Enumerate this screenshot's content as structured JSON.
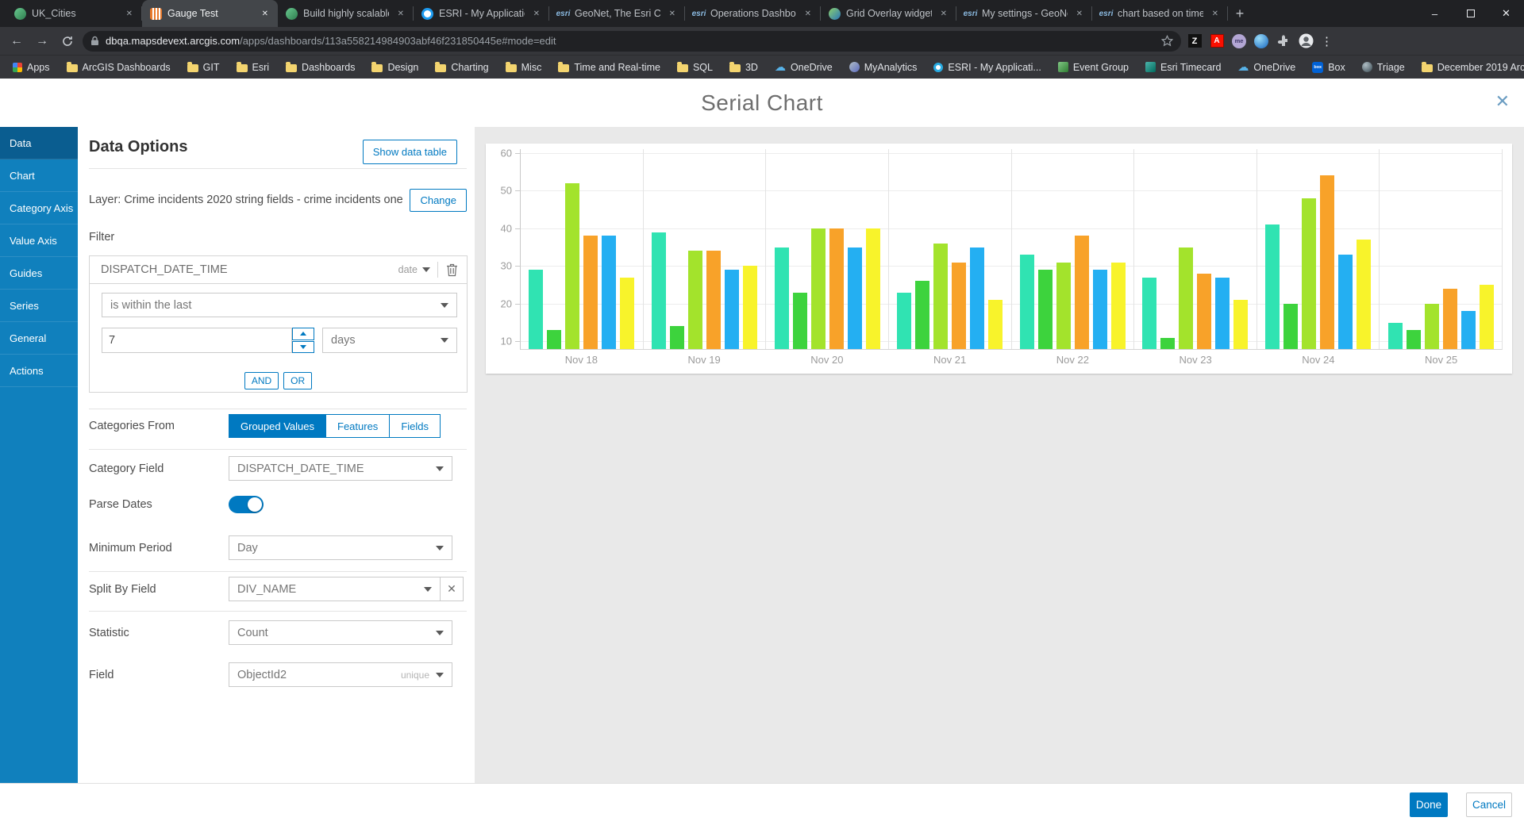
{
  "browser": {
    "tabs": [
      {
        "title": "UK_Cities",
        "icon": "globe",
        "active": false
      },
      {
        "title": "Gauge Test",
        "icon": "dashboard",
        "active": true
      },
      {
        "title": "Build highly scalable da",
        "icon": "globe",
        "active": false
      },
      {
        "title": "ESRI - My Applications",
        "icon": "ring",
        "active": false
      },
      {
        "title": "GeoNet, The Esri Comm",
        "icon": "esri",
        "active": false
      },
      {
        "title": "Operations Dashboard",
        "icon": "esri",
        "active": false
      },
      {
        "title": "Grid Overlay widget—A",
        "icon": "globe2",
        "active": false
      },
      {
        "title": "My settings - GeoNet, T",
        "icon": "esri",
        "active": false
      },
      {
        "title": "chart based on time/da",
        "icon": "esri",
        "active": false
      }
    ],
    "url": {
      "domain": "dbqa.mapsdevext.arcgis.com",
      "path": "/apps/dashboards/113a558214984903abf46f231850445e#mode=edit"
    },
    "extensions": {
      "z_label": "Z",
      "adobe_label": "A",
      "me_label": "me"
    },
    "bookmarks": [
      {
        "label": "Apps",
        "icon": "apps"
      },
      {
        "label": "ArcGIS Dashboards",
        "icon": "folder"
      },
      {
        "label": "GIT",
        "icon": "folder"
      },
      {
        "label": "Esri",
        "icon": "folder"
      },
      {
        "label": "Dashboards",
        "icon": "folder"
      },
      {
        "label": "Design",
        "icon": "folder"
      },
      {
        "label": "Charting",
        "icon": "folder"
      },
      {
        "label": "Misc",
        "icon": "folder"
      },
      {
        "label": "Time and Real-time",
        "icon": "folder"
      },
      {
        "label": "SQL",
        "icon": "folder"
      },
      {
        "label": "3D",
        "icon": "folder"
      },
      {
        "label": "OneDrive",
        "icon": "cloud"
      },
      {
        "label": "MyAnalytics",
        "icon": "analytics"
      },
      {
        "label": "ESRI - My Applicati...",
        "icon": "ring"
      },
      {
        "label": "Event Group",
        "icon": "image"
      },
      {
        "label": "Esri Timecard",
        "icon": "image2"
      },
      {
        "label": "OneDrive",
        "icon": "cloud"
      },
      {
        "label": "Box",
        "icon": "box"
      },
      {
        "label": "Triage",
        "icon": "globe"
      },
      {
        "label": "December 2019 Arc...",
        "icon": "folder"
      }
    ]
  },
  "dialog": {
    "title": "Serial Chart",
    "sidebar": [
      {
        "label": "Data",
        "active": true
      },
      {
        "label": "Chart",
        "active": false
      },
      {
        "label": "Category Axis",
        "active": false
      },
      {
        "label": "Value Axis",
        "active": false
      },
      {
        "label": "Guides",
        "active": false
      },
      {
        "label": "Series",
        "active": false
      },
      {
        "label": "General",
        "active": false
      },
      {
        "label": "Actions",
        "active": false
      }
    ]
  },
  "panel": {
    "heading": "Data Options",
    "show_data_table": "Show data table",
    "layer_label": "Layer: Crime incidents 2020 string fields - crime incidents one...",
    "change_label": "Change",
    "filter": {
      "label": "Filter",
      "field": "DISPATCH_DATE_TIME",
      "type": "date",
      "operator": "is within the last",
      "value": "7",
      "unit": "days",
      "and_label": "AND",
      "or_label": "OR"
    },
    "categories_from": {
      "label": "Categories From",
      "options": [
        "Grouped Values",
        "Features",
        "Fields"
      ],
      "active": 0
    },
    "category_field": {
      "label": "Category Field",
      "value": "DISPATCH_DATE_TIME"
    },
    "parse_dates": {
      "label": "Parse Dates",
      "on": true
    },
    "minimum_period": {
      "label": "Minimum Period",
      "value": "Day"
    },
    "split_by_field": {
      "label": "Split By Field",
      "value": "DIV_NAME"
    },
    "statistic": {
      "label": "Statistic",
      "value": "Count"
    },
    "field": {
      "label": "Field",
      "value": "ObjectId2",
      "hint": "unique"
    }
  },
  "chart_data": {
    "type": "bar",
    "title": "",
    "categories": [
      "Nov 18",
      "Nov 19",
      "Nov 20",
      "Nov 21",
      "Nov 22",
      "Nov 23",
      "Nov 24",
      "Nov 25"
    ],
    "series": [
      {
        "color": "#30e3b2",
        "values": [
          29,
          39,
          35,
          23,
          33,
          27,
          41,
          15
        ]
      },
      {
        "color": "#3dd33d",
        "values": [
          13,
          14,
          23,
          26,
          29,
          11,
          20,
          13
        ]
      },
      {
        "color": "#a3e32c",
        "values": [
          52,
          34,
          40,
          36,
          31,
          35,
          48,
          20
        ]
      },
      {
        "color": "#f8a229",
        "values": [
          38,
          34,
          40,
          31,
          38,
          28,
          54,
          24
        ]
      },
      {
        "color": "#24aff2",
        "values": [
          38,
          29,
          35,
          35,
          29,
          27,
          33,
          18
        ]
      },
      {
        "color": "#f8f32b",
        "values": [
          27,
          30,
          40,
          21,
          31,
          21,
          37,
          25
        ]
      }
    ],
    "y_ticks": [
      10,
      20,
      30,
      40,
      50,
      60
    ],
    "axis_min": 8,
    "axis_max": 61,
    "grid": true,
    "legend": false,
    "xlabel": "",
    "ylabel": ""
  },
  "footer": {
    "done": "Done",
    "cancel": "Cancel"
  }
}
